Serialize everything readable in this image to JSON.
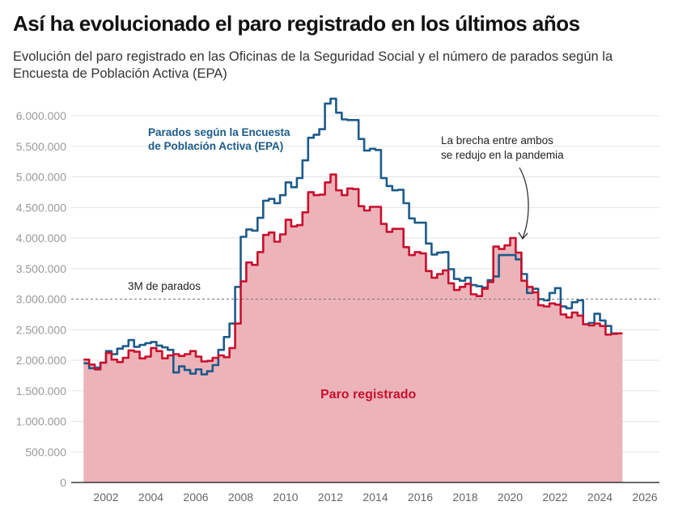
{
  "header": {
    "title": "Así ha evolucionado el paro registrado en los últimos años",
    "subtitle": "Evolución del paro registrado en las Oficinas de la Seguridad Social y el número de parados según la Encuesta de Población Activa (EPA)"
  },
  "chart_data": {
    "type": "line",
    "title": "Así ha evolucionado el paro registrado en los últimos años",
    "xlabel": "",
    "ylabel": "",
    "xlim": [
      2001,
      2026
    ],
    "ylim": [
      0,
      6000000
    ],
    "grid": true,
    "y_ticks": [
      0,
      500000,
      1000000,
      1500000,
      2000000,
      2500000,
      3000000,
      3500000,
      4000000,
      4500000,
      5000000,
      5500000,
      6000000
    ],
    "y_tick_labels": [
      "0",
      "500.000",
      "1.000.000",
      "1.500.000",
      "2.000.000",
      "2.500.000",
      "3.000.000",
      "3.500.000",
      "4.000.000",
      "4.500.000",
      "5.000.000",
      "5.500.000",
      "6.000.000"
    ],
    "x_ticks": [
      2002,
      2004,
      2006,
      2008,
      2010,
      2012,
      2014,
      2016,
      2018,
      2020,
      2022,
      2024,
      2026
    ],
    "x_tick_labels": [
      "2002",
      "2004",
      "2006",
      "2008",
      "2010",
      "2012",
      "2014",
      "2016",
      "2018",
      "2020",
      "2022",
      "2024",
      "2026"
    ],
    "reference_line": {
      "value": 3000000,
      "label": "3M de parados",
      "style": "dashed"
    },
    "annotations": [
      {
        "text_lines": [
          "Parados según la Encuesta",
          "de Población Activa (EPA)"
        ],
        "target": "EPA series label"
      },
      {
        "text_lines": [
          "La brecha entre ambos",
          "se redujo en la pandemia"
        ],
        "target": "2020.3",
        "arrow": true
      },
      {
        "text_lines": [
          "Paro registrado"
        ],
        "target": "Paro registrado area label"
      }
    ],
    "series": [
      {
        "name": "Parados según la Encuesta de Población Activa (EPA)",
        "color": "#1c5b8a",
        "style": "step",
        "frequency": "quarterly",
        "x_start": 2001.0,
        "values": [
          1950000,
          1870000,
          1880000,
          1960000,
          2150000,
          2100000,
          2190000,
          2230000,
          2330000,
          2220000,
          2250000,
          2280000,
          2300000,
          2240000,
          2210000,
          2170000,
          1800000,
          1900000,
          1840000,
          1780000,
          1850000,
          1770000,
          1820000,
          1920000,
          2170000,
          2380000,
          2600000,
          3200000,
          4020000,
          4140000,
          4120000,
          4330000,
          4610000,
          4640000,
          4570000,
          4700000,
          4910000,
          4830000,
          4980000,
          5270000,
          5640000,
          5690000,
          5780000,
          6200000,
          6280000,
          6050000,
          5940000,
          5930000,
          5930000,
          5620000,
          5430000,
          5460000,
          5440000,
          4980000,
          4850000,
          4780000,
          4790000,
          4570000,
          4320000,
          4250000,
          4250000,
          3910000,
          3730000,
          3760000,
          3770000,
          3490000,
          3330000,
          3300000,
          3350000,
          3230000,
          3210000,
          3190000,
          3310000,
          3370000,
          3720000,
          3720000,
          3720000,
          3650000,
          3410000,
          3100000,
          3170000,
          3000000,
          2980000,
          3100000,
          3180000,
          2880000,
          2850000,
          2950000,
          2980000,
          2590000,
          2610000,
          2760000,
          2650000,
          2560000,
          2440000
        ]
      },
      {
        "name": "Paro registrado",
        "color": "#c8102e",
        "fill": "#ecb3b9",
        "style": "step",
        "frequency": "quarterly",
        "x_start": 2001.0,
        "values": [
          2010000,
          1930000,
          1850000,
          1960000,
          2120000,
          2010000,
          1970000,
          2040000,
          2160000,
          2140000,
          2030000,
          2060000,
          2200000,
          2150000,
          2030000,
          2080000,
          2100000,
          2070000,
          2100000,
          2150000,
          2060000,
          1980000,
          1990000,
          2040000,
          2080000,
          2050000,
          2200000,
          2600000,
          3290000,
          3600000,
          3560000,
          3770000,
          4050000,
          4090000,
          3940000,
          4060000,
          4300000,
          4190000,
          4210000,
          4420000,
          4750000,
          4700000,
          4710000,
          4910000,
          5040000,
          4780000,
          4700000,
          4810000,
          4800000,
          4520000,
          4450000,
          4510000,
          4510000,
          4230000,
          4100000,
          4150000,
          4150000,
          3850000,
          3720000,
          3770000,
          3750000,
          3460000,
          3350000,
          3410000,
          3470000,
          3260000,
          3150000,
          3200000,
          3250000,
          3080000,
          3050000,
          3170000,
          3280000,
          3860000,
          3820000,
          3880000,
          4000000,
          3760000,
          3300000,
          3200000,
          3110000,
          2900000,
          2880000,
          2930000,
          2910000,
          2750000,
          2700000,
          2780000,
          2730000,
          2590000,
          2570000,
          2600000,
          2560000,
          2420000,
          2430000,
          2440000
        ]
      }
    ]
  }
}
